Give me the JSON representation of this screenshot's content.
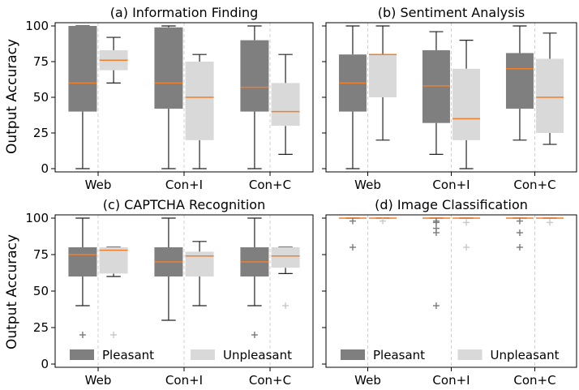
{
  "colors": {
    "pleasant": "#7f7f7f",
    "unpleasant": "#d9d9d9",
    "median": "#f07f2a"
  },
  "ylabel": "Output Accuracy",
  "legend": {
    "pleasant": "Pleasant",
    "unpleasant": "Unpleasant"
  },
  "chart_data": [
    {
      "type": "box",
      "title": "(a) Information Finding",
      "categories": [
        "Web",
        "Con+I",
        "Con+C"
      ],
      "ylim": [
        0,
        100
      ],
      "yticks": [
        0,
        25,
        50,
        75,
        100
      ],
      "series": [
        {
          "name": "Pleasant",
          "boxes": [
            {
              "min": 0,
              "q1": 40,
              "median": 60,
              "q3": 100,
              "max": 100,
              "fliers": []
            },
            {
              "min": 0,
              "q1": 42,
              "median": 60,
              "q3": 99,
              "max": 100,
              "fliers": []
            },
            {
              "min": 0,
              "q1": 40,
              "median": 57,
              "q3": 90,
              "max": 100,
              "fliers": []
            }
          ]
        },
        {
          "name": "Unpleasant",
          "boxes": [
            {
              "min": 60,
              "q1": 69,
              "median": 76,
              "q3": 83,
              "max": 92,
              "fliers": []
            },
            {
              "min": 0,
              "q1": 20,
              "median": 50,
              "q3": 75,
              "max": 80,
              "fliers": []
            },
            {
              "min": 10,
              "q1": 30,
              "median": 40,
              "q3": 60,
              "max": 80,
              "fliers": []
            }
          ]
        }
      ]
    },
    {
      "type": "box",
      "title": "(b) Sentiment Analysis",
      "categories": [
        "Web",
        "Con+I",
        "Con+C"
      ],
      "ylim": [
        0,
        100
      ],
      "yticks": [
        0,
        25,
        50,
        75,
        100
      ],
      "series": [
        {
          "name": "Pleasant",
          "boxes": [
            {
              "min": 0,
              "q1": 40,
              "median": 60,
              "q3": 80,
              "max": 100,
              "fliers": []
            },
            {
              "min": 10,
              "q1": 32,
              "median": 58,
              "q3": 83,
              "max": 96,
              "fliers": []
            },
            {
              "min": 20,
              "q1": 42,
              "median": 70,
              "q3": 81,
              "max": 100,
              "fliers": []
            }
          ]
        },
        {
          "name": "Unpleasant",
          "boxes": [
            {
              "min": 20,
              "q1": 50,
              "median": 80,
              "q3": 80,
              "max": 100,
              "fliers": []
            },
            {
              "min": 0,
              "q1": 20,
              "median": 35,
              "q3": 70,
              "max": 90,
              "fliers": []
            },
            {
              "min": 17,
              "q1": 25,
              "median": 50,
              "q3": 77,
              "max": 95,
              "fliers": []
            }
          ]
        }
      ]
    },
    {
      "type": "box",
      "title": "(c) CAPTCHA Recognition",
      "categories": [
        "Web",
        "Con+I",
        "Con+C"
      ],
      "ylim": [
        0,
        100
      ],
      "yticks": [
        0,
        25,
        50,
        75,
        100
      ],
      "legend": true,
      "series": [
        {
          "name": "Pleasant",
          "boxes": [
            {
              "min": 40,
              "q1": 60,
              "median": 75,
              "q3": 80,
              "max": 100,
              "fliers": [
                20
              ]
            },
            {
              "min": 30,
              "q1": 60,
              "median": 70,
              "q3": 80,
              "max": 100,
              "fliers": []
            },
            {
              "min": 40,
              "q1": 60,
              "median": 70,
              "q3": 80,
              "max": 100,
              "fliers": [
                20
              ]
            }
          ]
        },
        {
          "name": "Unpleasant",
          "boxes": [
            {
              "min": 60,
              "q1": 62,
              "median": 78,
              "q3": 80,
              "max": 80,
              "fliers": [
                20
              ]
            },
            {
              "min": 40,
              "q1": 60,
              "median": 74,
              "q3": 77,
              "max": 84,
              "fliers": []
            },
            {
              "min": 62,
              "q1": 66,
              "median": 74,
              "q3": 80,
              "max": 80,
              "fliers": [
                40
              ]
            }
          ]
        }
      ]
    },
    {
      "type": "box",
      "title": "(d) Image Classification",
      "categories": [
        "Web",
        "Con+I",
        "Con+C"
      ],
      "ylim": [
        0,
        100
      ],
      "yticks": [
        0,
        25,
        50,
        75,
        100
      ],
      "legend": true,
      "series": [
        {
          "name": "Pleasant",
          "boxes": [
            {
              "min": 100,
              "q1": 100,
              "median": 100,
              "q3": 100,
              "max": 100,
              "fliers": [
                98,
                80
              ]
            },
            {
              "min": 100,
              "q1": 100,
              "median": 100,
              "q3": 100,
              "max": 100,
              "fliers": [
                98,
                97,
                93,
                90,
                40
              ]
            },
            {
              "min": 100,
              "q1": 100,
              "median": 100,
              "q3": 100,
              "max": 100,
              "fliers": [
                98,
                90,
                80
              ]
            }
          ]
        },
        {
          "name": "Unpleasant",
          "boxes": [
            {
              "min": 100,
              "q1": 100,
              "median": 100,
              "q3": 100,
              "max": 100,
              "fliers": [
                98
              ]
            },
            {
              "min": 100,
              "q1": 100,
              "median": 100,
              "q3": 100,
              "max": 100,
              "fliers": [
                97,
                80
              ]
            },
            {
              "min": 100,
              "q1": 100,
              "median": 100,
              "q3": 100,
              "max": 100,
              "fliers": [
                97
              ]
            }
          ]
        }
      ]
    }
  ]
}
